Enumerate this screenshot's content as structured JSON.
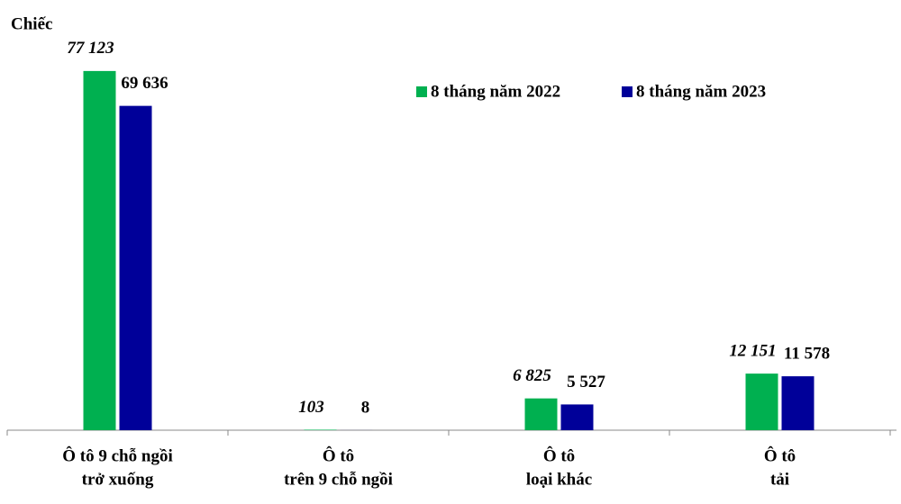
{
  "chart_data": {
    "type": "bar",
    "y_label": "Chiếc",
    "categories": [
      [
        "Ô tô 9 chỗ ngồi",
        "trở xuống"
      ],
      [
        "Ô tô",
        "trên 9 chỗ ngồi"
      ],
      [
        "Ô tô",
        "loại khác"
      ],
      [
        "Ô tô",
        "tải"
      ]
    ],
    "series": [
      {
        "name": "8 tháng năm 2022",
        "color": "#00b050",
        "values": [
          77123,
          103,
          6825,
          12151
        ],
        "value_labels": [
          "77 123",
          "103",
          "6 825",
          "12 151"
        ]
      },
      {
        "name": "8 tháng năm 2023",
        "color": "#000099",
        "values": [
          69636,
          8,
          5527,
          11578
        ],
        "value_labels": [
          "69 636",
          "8",
          "5 527",
          "11 578"
        ]
      }
    ],
    "ylim": [
      0,
      80000
    ],
    "legend": "top-right"
  }
}
